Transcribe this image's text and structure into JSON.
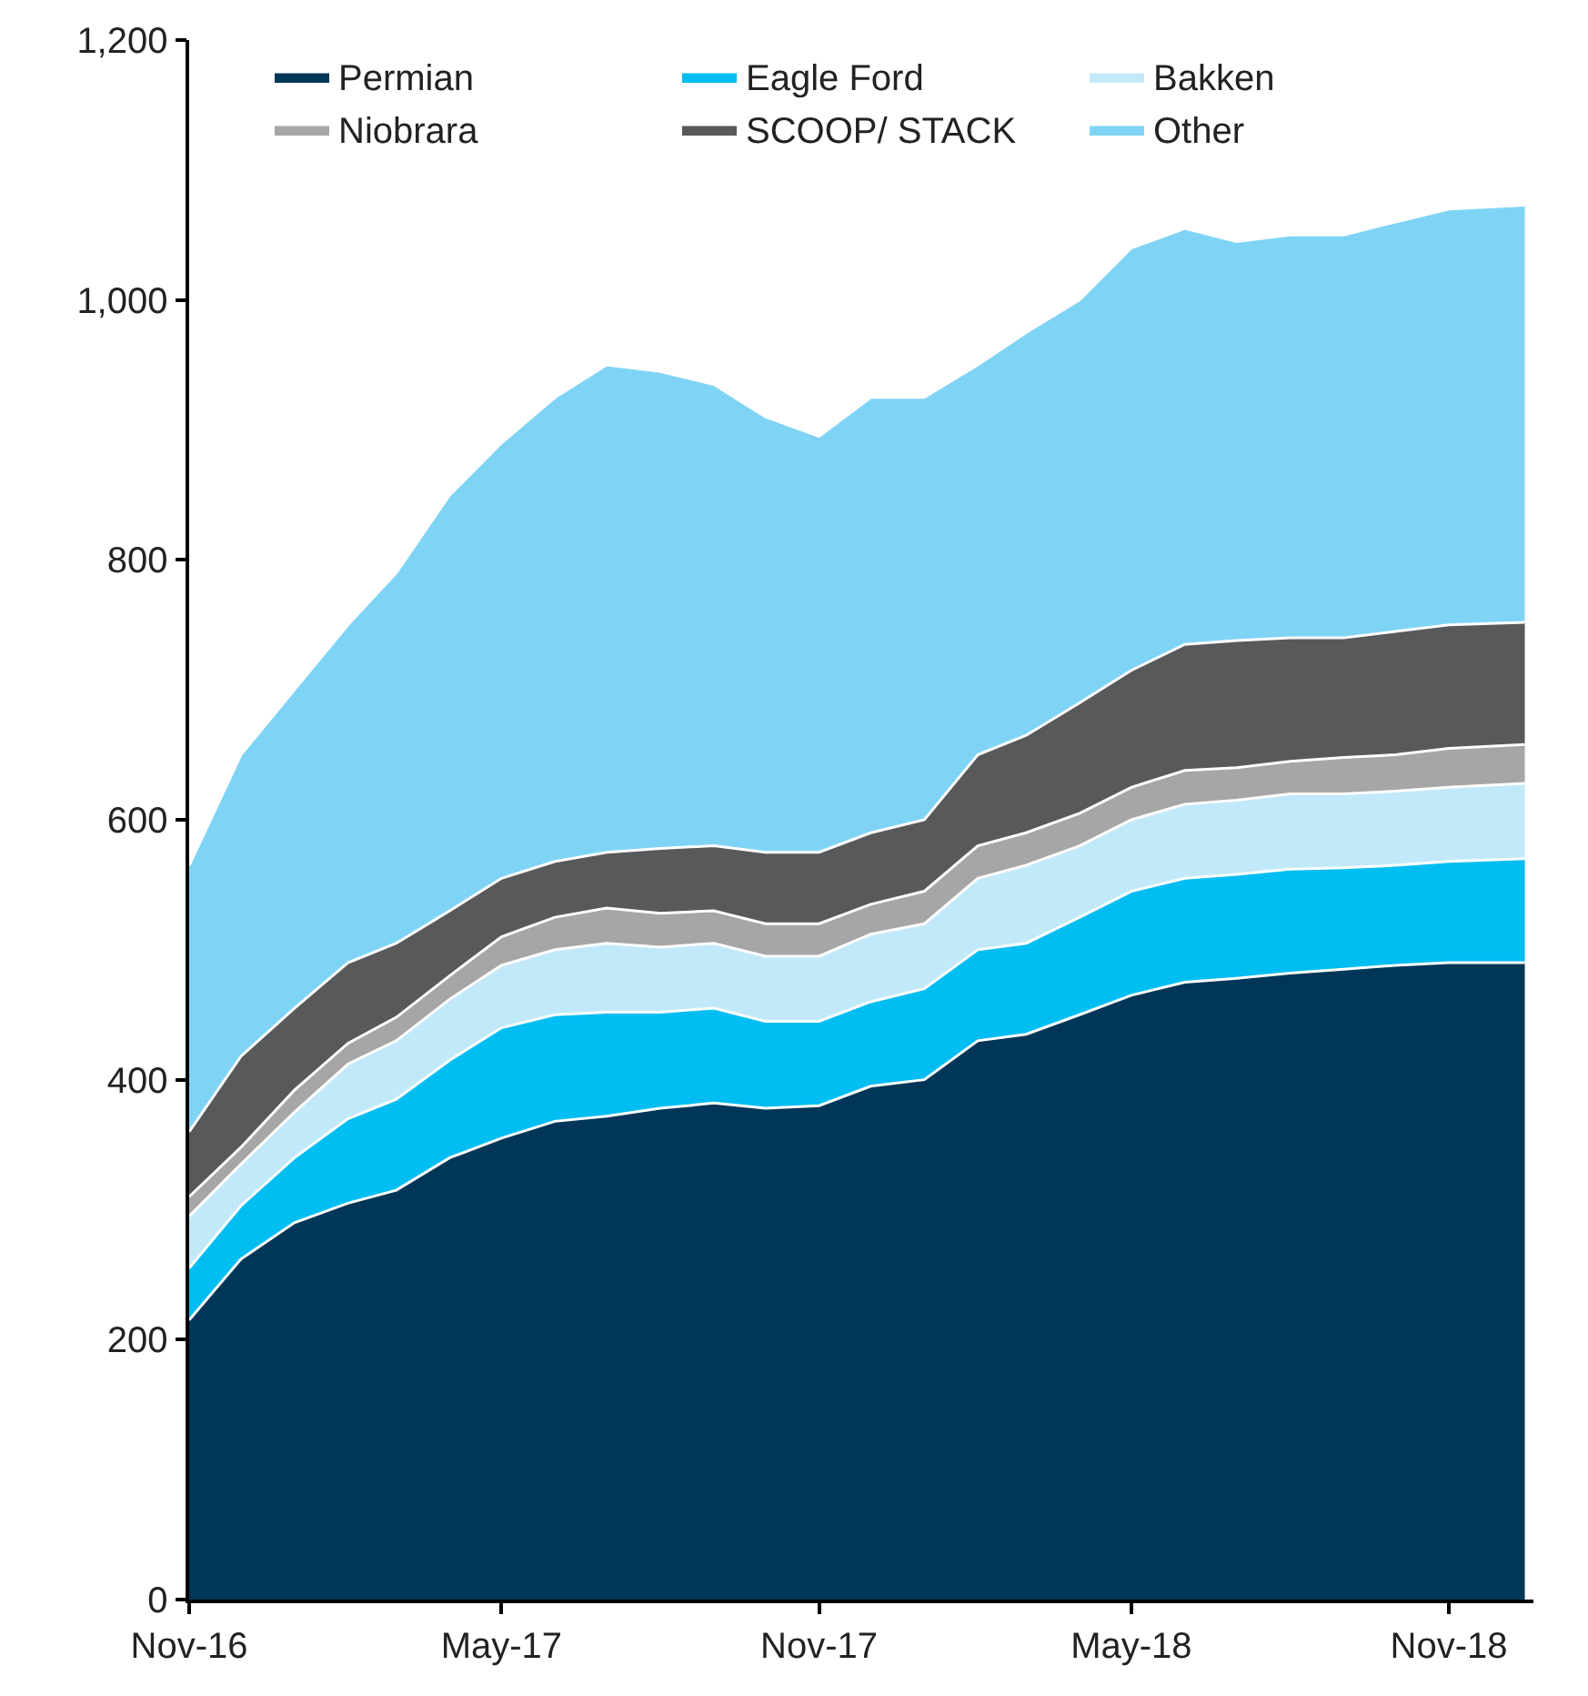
{
  "chart_data": {
    "type": "area",
    "stacked": true,
    "legend": "top",
    "x": [
      "2016-11-01",
      "2016-12-01",
      "2017-01-01",
      "2017-02-01",
      "2017-03-01",
      "2017-04-01",
      "2017-05-01",
      "2017-06-01",
      "2017-07-01",
      "2017-08-01",
      "2017-09-01",
      "2017-10-01",
      "2017-11-01",
      "2017-12-01",
      "2018-01-01",
      "2018-02-01",
      "2018-03-01",
      "2018-04-01",
      "2018-05-01",
      "2018-06-01",
      "2018-07-01",
      "2018-08-01",
      "2018-09-01",
      "2018-10-01",
      "2018-11-01",
      "2018-12-15"
    ],
    "series": [
      {
        "name": "Permian",
        "color": "#003657",
        "values": [
          215,
          262,
          290,
          305,
          315,
          340,
          355,
          368,
          372,
          378,
          382,
          378,
          380,
          395,
          400,
          430,
          435,
          450,
          465,
          475,
          478,
          482,
          485,
          488,
          490,
          490
        ]
      },
      {
        "name": "Eagle Ford",
        "color": "#00bdf2",
        "values": [
          40,
          41,
          50,
          65,
          70,
          75,
          85,
          82,
          80,
          74,
          73,
          67,
          65,
          65,
          70,
          70,
          70,
          75,
          80,
          80,
          80,
          80,
          78,
          77,
          78,
          80
        ]
      },
      {
        "name": "Bakken",
        "color": "#c2e9f9",
        "values": [
          40,
          32,
          35,
          42,
          45,
          47,
          48,
          50,
          53,
          50,
          50,
          50,
          50,
          52,
          50,
          55,
          60,
          55,
          55,
          57,
          57,
          58,
          57,
          57,
          57,
          58
        ]
      },
      {
        "name": "Niobrara",
        "color": "#a6a6a6",
        "values": [
          15,
          13,
          17,
          16,
          18,
          18,
          22,
          25,
          27,
          26,
          25,
          25,
          25,
          23,
          25,
          25,
          25,
          25,
          25,
          26,
          25,
          25,
          28,
          28,
          30,
          30
        ]
      },
      {
        "name": "SCOOP/ STACK",
        "color": "#58595b",
        "values": [
          50,
          70,
          63,
          62,
          57,
          50,
          45,
          43,
          43,
          50,
          50,
          55,
          55,
          55,
          55,
          70,
          75,
          85,
          90,
          97,
          98,
          95,
          92,
          95,
          95,
          94
        ]
      },
      {
        "name": "Other",
        "color": "#7fd4f5",
        "values": [
          205,
          232,
          245,
          260,
          285,
          320,
          335,
          357,
          375,
          367,
          355,
          335,
          320,
          335,
          325,
          300,
          310,
          310,
          325,
          320,
          307,
          310,
          310,
          315,
          320,
          321
        ]
      }
    ],
    "xlim": [
      "2016-11-01",
      "2018-12-20"
    ],
    "xticks": [
      {
        "value": "2016-11-01",
        "label": "Nov-16"
      },
      {
        "value": "2017-05-01",
        "label": "May-17"
      },
      {
        "value": "2017-11-01",
        "label": "Nov-17"
      },
      {
        "value": "2018-05-01",
        "label": "May-18"
      },
      {
        "value": "2018-11-01",
        "label": "Nov-18"
      }
    ],
    "ylim": [
      0,
      1200
    ],
    "yticks": [
      0,
      200,
      400,
      600,
      800,
      {
        "value": 1000,
        "label": "1,000"
      },
      {
        "value": 1200,
        "label": "1,200"
      }
    ]
  }
}
